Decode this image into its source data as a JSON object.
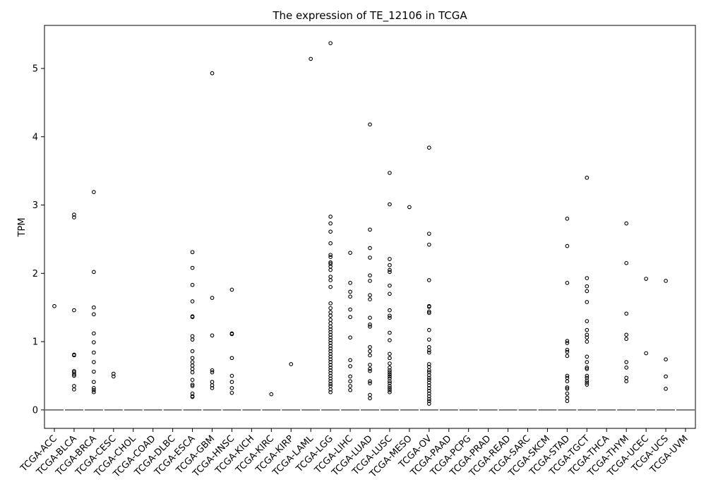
{
  "chart_data": {
    "type": "box",
    "title": "The expression of TE_12106 in TCGA",
    "xlabel": "",
    "ylabel": "TPM",
    "ylim": [
      -0.27,
      5.63
    ],
    "yticks": [
      0,
      1,
      2,
      3,
      4,
      5
    ],
    "grid": false,
    "legend": "none",
    "categories": [
      "TCGA-ACC",
      "TCGA-BLCA",
      "TCGA-BRCA",
      "TCGA-CESC",
      "TCGA-CHOL",
      "TCGA-COAD",
      "TCGA-DLBC",
      "TCGA-ESCA",
      "TCGA-GBM",
      "TCGA-HNSC",
      "TCGA-KICH",
      "TCGA-KIRC",
      "TCGA-KIRP",
      "TCGA-LAML",
      "TCGA-LGG",
      "TCGA-LIHC",
      "TCGA-LUAD",
      "TCGA-LUSC",
      "TCGA-MESO",
      "TCGA-OV",
      "TCGA-PAAD",
      "TCGA-PCPG",
      "TCGA-PRAD",
      "TCGA-READ",
      "TCGA-SARC",
      "TCGA-SKCM",
      "TCGA-STAD",
      "TCGA-TGCT",
      "TCGA-THCA",
      "TCGA-THYM",
      "TCGA-UCEC",
      "TCGA-UCS",
      "TCGA-UVM"
    ],
    "median": [
      0,
      0,
      0,
      0,
      0,
      0,
      0,
      0,
      0,
      0,
      0,
      0,
      0,
      0,
      0,
      0,
      0,
      0,
      0,
      0,
      0,
      0,
      0,
      0,
      0,
      0,
      0,
      0,
      0,
      0,
      0,
      0,
      0
    ],
    "outliers": [
      [
        1.52
      ],
      [
        2.86,
        2.82,
        1.46,
        0.81,
        0.8,
        0.57,
        0.55,
        0.52,
        0.5,
        0.35,
        0.3
      ],
      [
        3.19,
        2.02,
        1.5,
        1.4,
        1.12,
        0.99,
        0.84,
        0.7,
        0.56,
        0.41,
        0.32,
        0.29,
        0.26
      ],
      [
        0.53,
        0.49
      ],
      [],
      [],
      [],
      [
        2.31,
        2.08,
        1.83,
        1.59,
        1.37,
        1.36,
        1.08,
        1.03,
        0.86,
        0.76,
        0.7,
        0.65,
        0.6,
        0.55,
        0.44,
        0.37,
        0.35,
        0.24,
        0.2,
        0.19
      ],
      [
        4.93,
        1.64,
        1.09,
        0.58,
        0.55,
        0.41,
        0.36,
        0.32
      ],
      [
        1.76,
        1.12,
        1.11,
        0.76,
        0.5,
        0.41,
        0.32,
        0.25
      ],
      [],
      [
        0.23
      ],
      [
        0.67
      ],
      [
        5.14
      ],
      [
        5.37,
        2.83,
        2.73,
        2.61,
        2.44,
        2.27,
        2.24,
        2.16,
        2.14,
        2.1,
        2.05,
        1.95,
        1.9,
        1.8,
        1.56,
        1.49,
        1.43,
        1.38,
        1.32,
        1.27,
        1.22,
        1.18,
        1.14,
        1.1,
        1.06,
        1.02,
        0.98,
        0.94,
        0.9,
        0.86,
        0.82,
        0.78,
        0.74,
        0.7,
        0.66,
        0.62,
        0.58,
        0.54,
        0.5,
        0.46,
        0.42,
        0.38,
        0.35,
        0.3,
        0.26
      ],
      [
        2.3,
        1.86,
        1.73,
        1.66,
        1.47,
        1.36,
        1.06,
        0.73,
        0.64,
        0.49,
        0.42,
        0.35,
        0.29
      ],
      [
        4.18,
        2.64,
        2.37,
        2.23,
        1.97,
        1.89,
        1.68,
        1.62,
        1.35,
        1.25,
        1.22,
        0.92,
        0.86,
        0.8,
        0.66,
        0.6,
        0.57,
        0.42,
        0.39,
        0.22,
        0.17
      ],
      [
        3.47,
        3.01,
        2.21,
        2.12,
        2.05,
        2.02,
        1.82,
        1.7,
        1.46,
        1.38,
        1.35,
        1.13,
        1.02,
        0.82,
        0.76,
        0.68,
        0.62,
        0.58,
        0.55,
        0.52,
        0.49,
        0.46,
        0.42,
        0.39,
        0.35,
        0.32,
        0.29,
        0.26
      ],
      [
        2.97
      ],
      [
        3.84,
        2.58,
        2.42,
        1.9,
        1.52,
        1.51,
        1.44,
        1.42,
        1.17,
        1.03,
        0.92,
        0.87,
        0.84,
        0.67,
        0.63,
        0.58,
        0.55,
        0.51,
        0.47,
        0.44,
        0.4,
        0.36,
        0.32,
        0.28,
        0.24,
        0.2,
        0.16,
        0.13,
        0.09
      ],
      [],
      [],
      [],
      [],
      [],
      [],
      [
        2.8,
        2.4,
        1.86,
        1.01,
        0.98,
        0.88,
        0.85,
        0.79,
        0.5,
        0.47,
        0.42,
        0.33,
        0.31,
        0.24,
        0.18,
        0.13
      ],
      [
        3.4,
        1.93,
        1.81,
        1.74,
        1.58,
        1.3,
        1.17,
        1.1,
        1.06,
        1.0,
        0.78,
        0.7,
        0.62,
        0.6,
        0.5,
        0.47,
        0.43,
        0.4,
        0.37
      ],
      [],
      [
        2.73,
        2.15,
        1.41,
        1.1,
        1.04,
        0.7,
        0.62,
        0.47,
        0.42
      ],
      [
        1.92,
        0.83
      ],
      [
        1.89,
        0.74,
        0.49,
        0.31
      ],
      []
    ]
  }
}
